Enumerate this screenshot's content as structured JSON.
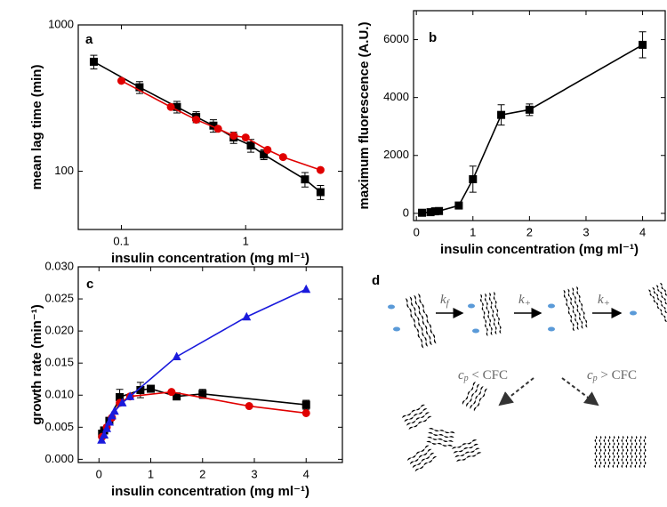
{
  "chart_data": [
    {
      "type": "line",
      "panel_label": "a",
      "x_label": "insulin concentration (mg ml⁻¹)",
      "y_label": "mean lag time (min)",
      "log_x": true,
      "log_y": true,
      "xlim": [
        0.045,
        6
      ],
      "ylim": [
        40,
        1000
      ],
      "xticks": [
        0.1,
        1
      ],
      "yticks": [
        100,
        1000
      ],
      "series": [
        {
          "color": "#000000",
          "marker": "square",
          "x": [
            0.06,
            0.14,
            0.28,
            0.4,
            0.55,
            0.8,
            1.1,
            1.4,
            3,
            4
          ],
          "values": [
            560,
            375,
            275,
            235,
            205,
            170,
            150,
            130,
            88,
            72
          ],
          "errors": [
            60,
            35,
            25,
            20,
            20,
            15,
            15,
            10,
            10,
            8
          ]
        },
        {
          "color": "#e00000",
          "marker": "circle",
          "x": [
            0.1,
            0.25,
            0.4,
            0.6,
            0.8,
            1,
            1.5,
            2,
            4
          ],
          "values": [
            415,
            275,
            225,
            195,
            175,
            170,
            140,
            125,
            102
          ],
          "errors": [
            null,
            null,
            null,
            null,
            null,
            null,
            null,
            null,
            null
          ]
        }
      ]
    },
    {
      "type": "line",
      "panel_label": "b",
      "x_label": "insulin concentration (mg ml⁻¹)",
      "y_label": "maximum fluorescence (A.U.)",
      "log_x": false,
      "log_y": false,
      "xlim": [
        -0.05,
        4.4
      ],
      "ylim": [
        -250,
        7000
      ],
      "xticks": [
        0,
        1,
        2,
        3,
        4
      ],
      "yticks": [
        0,
        2000,
        4000,
        6000
      ],
      "series": [
        {
          "color": "#000000",
          "marker": "square",
          "x": [
            0.1,
            0.25,
            0.33,
            0.4,
            0.75,
            1,
            1.5,
            2,
            4
          ],
          "values": [
            20,
            40,
            70,
            80,
            270,
            1180,
            3400,
            3580,
            5820
          ],
          "errors": [
            null,
            null,
            null,
            null,
            100,
            450,
            350,
            200,
            450
          ]
        }
      ]
    },
    {
      "type": "line",
      "panel_label": "c",
      "x_label": "insulin concentration (mg ml⁻¹)",
      "y_label": "growth rate (min⁻¹)",
      "log_x": false,
      "log_y": false,
      "xlim": [
        -0.4,
        4.7
      ],
      "ylim": [
        -0.0005,
        0.03
      ],
      "xticks": [
        0,
        1,
        2,
        3,
        4
      ],
      "yticks": [
        {
          "value": 0,
          "label": "0.000"
        },
        {
          "value": 0.005,
          "label": "0.005"
        },
        {
          "value": 0.01,
          "label": "0.010"
        },
        {
          "value": 0.015,
          "label": "0.015"
        },
        {
          "value": 0.02,
          "label": "0.020"
        },
        {
          "value": 0.025,
          "label": "0.025"
        },
        {
          "value": 0.03,
          "label": "0.030"
        }
      ],
      "series": [
        {
          "color": "#000000",
          "marker": "square",
          "x": [
            0.06,
            0.1,
            0.2,
            0.4,
            0.8,
            1,
            1.5,
            2,
            4
          ],
          "values": [
            0.004,
            0.0045,
            0.006,
            0.0097,
            0.0108,
            0.011,
            0.0098,
            0.0102,
            0.0085
          ],
          "errors": [
            null,
            null,
            null,
            0.0012,
            0.0012,
            null,
            null,
            0.0007,
            0.0007
          ]
        },
        {
          "color": "#e00000",
          "marker": "circle",
          "x": [
            0.06,
            0.15,
            0.25,
            0.4,
            0.6,
            1.4,
            2.9,
            4
          ],
          "values": [
            0.0035,
            0.005,
            0.0065,
            0.0088,
            0.0098,
            0.0105,
            0.0083,
            0.0072
          ],
          "errors": [
            null,
            null,
            null,
            null,
            null,
            null,
            null,
            null
          ]
        },
        {
          "color": "#1a1adc",
          "marker": "triangle",
          "x": [
            0.05,
            0.1,
            0.15,
            0.2,
            0.25,
            0.3,
            0.45,
            0.6,
            1.5,
            2.85,
            4
          ],
          "values": [
            0.003,
            0.0038,
            0.0048,
            0.0058,
            0.0068,
            0.0075,
            0.0088,
            0.0098,
            0.016,
            0.0222,
            0.0265
          ],
          "errors": [
            null,
            null,
            null,
            null,
            null,
            null,
            null,
            null,
            null,
            null,
            null
          ]
        }
      ]
    }
  ],
  "diagram": {
    "panel_label": "d",
    "k_f": {
      "symbol": "k",
      "sub": "f"
    },
    "k_plus_1": {
      "symbol": "k",
      "sub": "+"
    },
    "k_plus_2": {
      "symbol": "k",
      "sub": "+"
    },
    "below": {
      "symbol": "c",
      "sub": "p",
      "rest": " < CFC"
    },
    "above": {
      "symbol": "c",
      "sub": "p",
      "rest": " > CFC"
    }
  }
}
